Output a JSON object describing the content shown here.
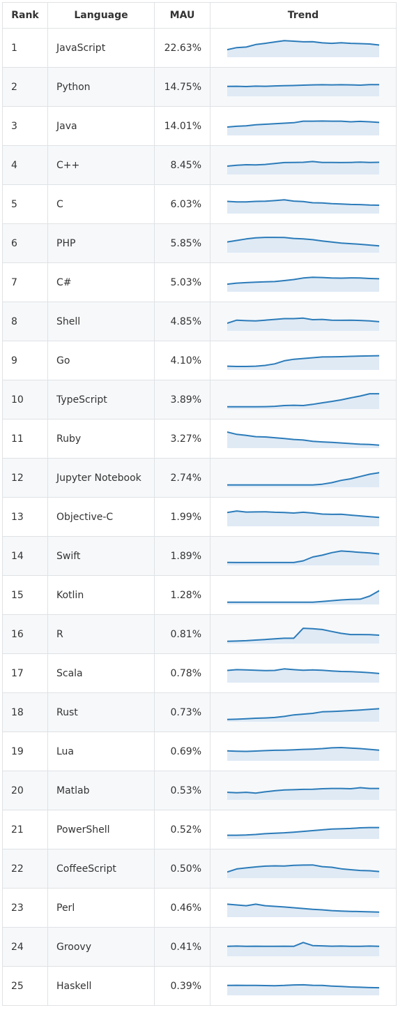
{
  "table": {
    "headers": {
      "rank": "Rank",
      "language": "Language",
      "mau": "MAU",
      "trend": "Trend"
    }
  },
  "colors": {
    "line": "#2b7bb9",
    "area": "#dfeaf5",
    "stripe": "#f6f8fa",
    "border": "#dfe2e5"
  },
  "chart_data": {
    "type": "table",
    "columns": [
      "Rank",
      "Language",
      "MAU",
      "Trend"
    ],
    "rows": [
      {
        "rank": "1",
        "language": "JavaScript",
        "mau": "22.63%",
        "trend": [
          4.5,
          5.8,
          6.2,
          7.8,
          8.6,
          9.5,
          10.3,
          10.0,
          9.6,
          9.7,
          8.9,
          8.6,
          9.0,
          8.6,
          8.4,
          8.2,
          7.5
        ]
      },
      {
        "rank": "2",
        "language": "Python",
        "mau": "14.75%",
        "trend": [
          6.0,
          6.1,
          5.9,
          6.2,
          6.1,
          6.3,
          6.5,
          6.6,
          6.8,
          7.0,
          7.1,
          7.0,
          7.1,
          7.0,
          6.8,
          7.2,
          7.2
        ]
      },
      {
        "rank": "3",
        "language": "Java",
        "mau": "14.01%",
        "trend": [
          5.0,
          5.5,
          5.8,
          6.5,
          6.8,
          7.2,
          7.5,
          7.8,
          8.8,
          8.8,
          8.9,
          8.8,
          8.8,
          8.4,
          8.7,
          8.4,
          8.0
        ]
      },
      {
        "rank": "4",
        "language": "C++",
        "mau": "8.45%",
        "trend": [
          5.0,
          5.6,
          5.9,
          5.8,
          6.1,
          6.7,
          7.3,
          7.4,
          7.5,
          8.0,
          7.4,
          7.4,
          7.3,
          7.4,
          7.6,
          7.4,
          7.5
        ]
      },
      {
        "rank": "5",
        "language": "C",
        "mau": "6.03%",
        "trend": [
          7.5,
          7.2,
          7.2,
          7.5,
          7.6,
          8.0,
          8.5,
          7.7,
          7.4,
          6.6,
          6.5,
          6.0,
          5.8,
          5.5,
          5.4,
          5.1,
          5.0
        ]
      },
      {
        "rank": "6",
        "language": "PHP",
        "mau": "5.85%",
        "trend": [
          6.5,
          7.5,
          8.5,
          9.2,
          9.5,
          9.5,
          9.4,
          8.8,
          8.5,
          8.0,
          7.2,
          6.5,
          5.8,
          5.4,
          5.0,
          4.5,
          4.0
        ]
      },
      {
        "rank": "7",
        "language": "C#",
        "mau": "5.03%",
        "trend": [
          4.5,
          5.2,
          5.5,
          5.8,
          6.0,
          6.2,
          6.8,
          7.5,
          8.5,
          9.0,
          8.8,
          8.5,
          8.4,
          8.6,
          8.5,
          8.2,
          8.0
        ]
      },
      {
        "rank": "8",
        "language": "Shell",
        "mau": "4.85%",
        "trend": [
          4.5,
          6.5,
          6.2,
          6.0,
          6.5,
          7.0,
          7.5,
          7.5,
          7.8,
          6.8,
          7.0,
          6.5,
          6.4,
          6.5,
          6.3,
          6.0,
          5.5
        ]
      },
      {
        "rank": "9",
        "language": "Go",
        "mau": "4.10%",
        "trend": [
          2.0,
          1.8,
          1.8,
          2.0,
          2.5,
          3.5,
          5.5,
          6.5,
          7.0,
          7.5,
          8.0,
          8.1,
          8.2,
          8.4,
          8.6,
          8.7,
          8.8
        ]
      },
      {
        "rank": "10",
        "language": "TypeScript",
        "mau": "3.89%",
        "trend": [
          1.0,
          1.0,
          1.0,
          1.0,
          1.1,
          1.3,
          1.8,
          2.0,
          1.8,
          2.6,
          3.6,
          4.5,
          5.5,
          6.8,
          8.0,
          9.5,
          9.5
        ]
      },
      {
        "rank": "11",
        "language": "Ruby",
        "mau": "3.27%",
        "trend": [
          10.0,
          8.5,
          7.8,
          7.0,
          6.8,
          6.3,
          5.8,
          5.2,
          4.8,
          4.0,
          3.6,
          3.3,
          2.9,
          2.5,
          2.1,
          1.9,
          1.5
        ]
      },
      {
        "rank": "12",
        "language": "Jupyter Notebook",
        "mau": "2.74%",
        "trend": [
          1.0,
          1.0,
          1.0,
          1.0,
          1.0,
          1.0,
          1.0,
          1.0,
          1.0,
          1.0,
          1.5,
          2.5,
          4.0,
          5.0,
          6.5,
          8.0,
          9.0
        ]
      },
      {
        "rank": "13",
        "language": "Objective-C",
        "mau": "1.99%",
        "trend": [
          8.5,
          9.5,
          8.8,
          8.9,
          9.0,
          8.7,
          8.5,
          8.2,
          8.7,
          8.2,
          7.5,
          7.3,
          7.4,
          6.8,
          6.3,
          5.8,
          5.3
        ]
      },
      {
        "rank": "14",
        "language": "Swift",
        "mau": "1.89%",
        "trend": [
          1.5,
          1.4,
          1.4,
          1.4,
          1.4,
          1.4,
          1.4,
          1.4,
          2.5,
          5.0,
          6.2,
          7.8,
          8.9,
          8.5,
          8.0,
          7.6,
          7.0
        ]
      },
      {
        "rank": "15",
        "language": "Kotlin",
        "mau": "1.28%",
        "trend": [
          1.0,
          1.0,
          1.0,
          1.0,
          1.0,
          1.0,
          1.0,
          1.0,
          1.0,
          1.0,
          1.5,
          2.0,
          2.5,
          2.8,
          3.0,
          5.0,
          8.5
        ]
      },
      {
        "rank": "16",
        "language": "R",
        "mau": "0.81%",
        "trend": [
          1.0,
          1.2,
          1.4,
          1.8,
          2.2,
          2.6,
          3.0,
          3.0,
          9.5,
          9.2,
          8.7,
          7.4,
          6.2,
          5.4,
          5.4,
          5.3,
          5.0
        ]
      },
      {
        "rank": "17",
        "language": "Scala",
        "mau": "0.78%",
        "trend": [
          7.5,
          8.0,
          7.8,
          7.6,
          7.4,
          7.5,
          8.5,
          8.0,
          7.6,
          7.8,
          7.6,
          7.2,
          6.8,
          6.7,
          6.4,
          6.0,
          5.5
        ]
      },
      {
        "rank": "18",
        "language": "Rust",
        "mau": "0.73%",
        "trend": [
          1.0,
          1.2,
          1.5,
          1.8,
          2.0,
          2.3,
          3.0,
          4.0,
          4.5,
          5.0,
          6.0,
          6.2,
          6.5,
          6.8,
          7.2,
          7.6,
          8.0
        ]
      },
      {
        "rank": "19",
        "language": "Lua",
        "mau": "0.69%",
        "trend": [
          6.0,
          5.8,
          5.7,
          5.9,
          6.2,
          6.4,
          6.5,
          6.7,
          7.0,
          7.2,
          7.5,
          8.0,
          8.2,
          7.8,
          7.5,
          7.0,
          6.5
        ]
      },
      {
        "rank": "20",
        "language": "Matlab",
        "mau": "0.53%",
        "trend": [
          4.5,
          4.2,
          4.5,
          4.0,
          4.8,
          5.5,
          6.0,
          6.2,
          6.4,
          6.5,
          6.8,
          7.0,
          7.0,
          6.8,
          7.5,
          7.0,
          7.0
        ]
      },
      {
        "rank": "21",
        "language": "PowerShell",
        "mau": "0.52%",
        "trend": [
          2.0,
          2.0,
          2.2,
          2.5,
          3.0,
          3.3,
          3.6,
          4.0,
          4.5,
          5.0,
          5.5,
          6.0,
          6.2,
          6.4,
          6.8,
          7.0,
          7.0
        ]
      },
      {
        "rank": "22",
        "language": "CoffeeScript",
        "mau": "0.50%",
        "trend": [
          3.5,
          5.5,
          6.2,
          6.8,
          7.3,
          7.5,
          7.4,
          7.8,
          8.0,
          8.1,
          7.0,
          6.6,
          5.6,
          5.0,
          4.5,
          4.3,
          3.8
        ]
      },
      {
        "rank": "23",
        "language": "Perl",
        "mau": "0.46%",
        "trend": [
          8.0,
          7.5,
          7.0,
          8.0,
          7.0,
          6.6,
          6.2,
          5.7,
          5.2,
          4.7,
          4.3,
          3.8,
          3.5,
          3.3,
          3.2,
          3.0,
          2.8
        ]
      },
      {
        "rank": "24",
        "language": "Groovy",
        "mau": "0.41%",
        "trend": [
          6.0,
          6.2,
          6.0,
          6.1,
          6.0,
          6.0,
          6.1,
          6.0,
          8.5,
          6.5,
          6.3,
          6.1,
          6.2,
          6.0,
          6.0,
          6.2,
          6.0
        ]
      },
      {
        "rank": "25",
        "language": "Haskell",
        "mau": "0.39%",
        "trend": [
          6.0,
          6.1,
          6.0,
          6.0,
          5.9,
          5.8,
          6.0,
          6.3,
          6.4,
          6.1,
          6.0,
          5.6,
          5.3,
          5.0,
          4.8,
          4.6,
          4.5
        ]
      }
    ]
  }
}
